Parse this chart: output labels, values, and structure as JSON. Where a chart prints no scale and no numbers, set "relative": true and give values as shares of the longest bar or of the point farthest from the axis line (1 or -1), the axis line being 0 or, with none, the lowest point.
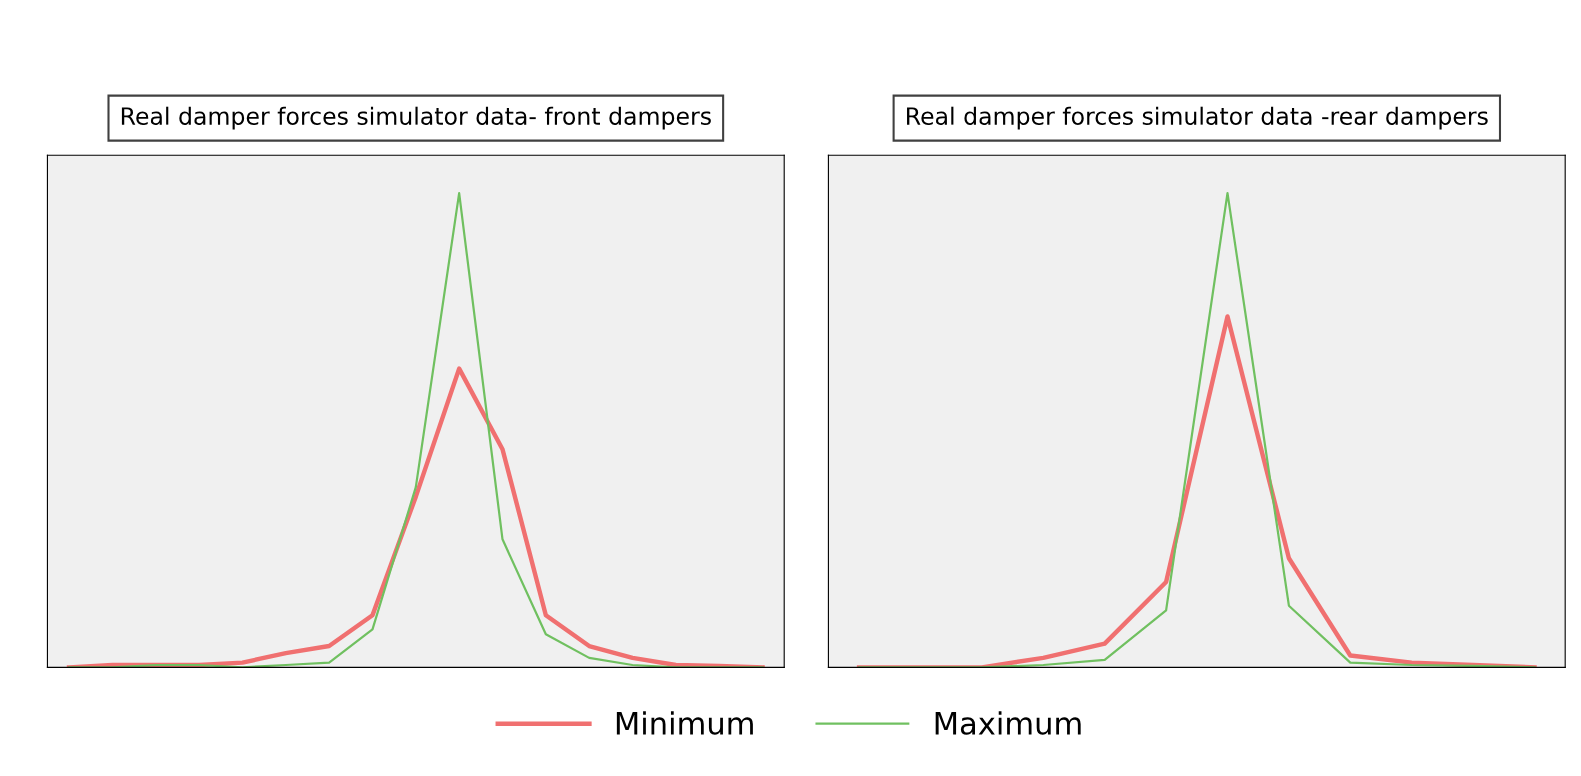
{
  "chart_data": [
    {
      "type": "line",
      "title": "Real damper forces simulator data- front dampers",
      "relative": true,
      "grid": false,
      "legend": "bottom",
      "categories": [
        null,
        null,
        null,
        null,
        null,
        null,
        null,
        null,
        null,
        null,
        null,
        null,
        null,
        null,
        null,
        null,
        null
      ],
      "series": [
        {
          "name": "Minimum",
          "color": "#f07070",
          "values": [
            0,
            0.005,
            0.005,
            0.005,
            0.01,
            0.03,
            0.045,
            0.11,
            0.36,
            0.63,
            0.46,
            0.11,
            0.045,
            0.02,
            0.005,
            0.003,
            0
          ]
        },
        {
          "name": "Maximum",
          "color": "#70c060",
          "values": [
            0,
            0,
            0.005,
            0.005,
            0,
            0.005,
            0.01,
            0.08,
            0.38,
            1,
            0.27,
            0.07,
            0.02,
            0.005,
            0,
            0,
            0
          ]
        }
      ]
    },
    {
      "type": "line",
      "title": "Real damper forces simulator data -rear dampers",
      "relative": true,
      "grid": false,
      "categories": [
        null,
        null,
        null,
        null,
        null,
        null,
        null,
        null,
        null,
        null,
        null,
        null
      ],
      "series": [
        {
          "color": "#f07070",
          "values": [
            0,
            0,
            0,
            0.02,
            0.05,
            0.18,
            0.74,
            0.23,
            0.025,
            0.01,
            0.005,
            0
          ]
        },
        {
          "color": "#70c060",
          "values": [
            0,
            0,
            0,
            0.005,
            0.016,
            0.12,
            1,
            0.13,
            0.01,
            0.005,
            0.003,
            0
          ]
        }
      ]
    }
  ]
}
